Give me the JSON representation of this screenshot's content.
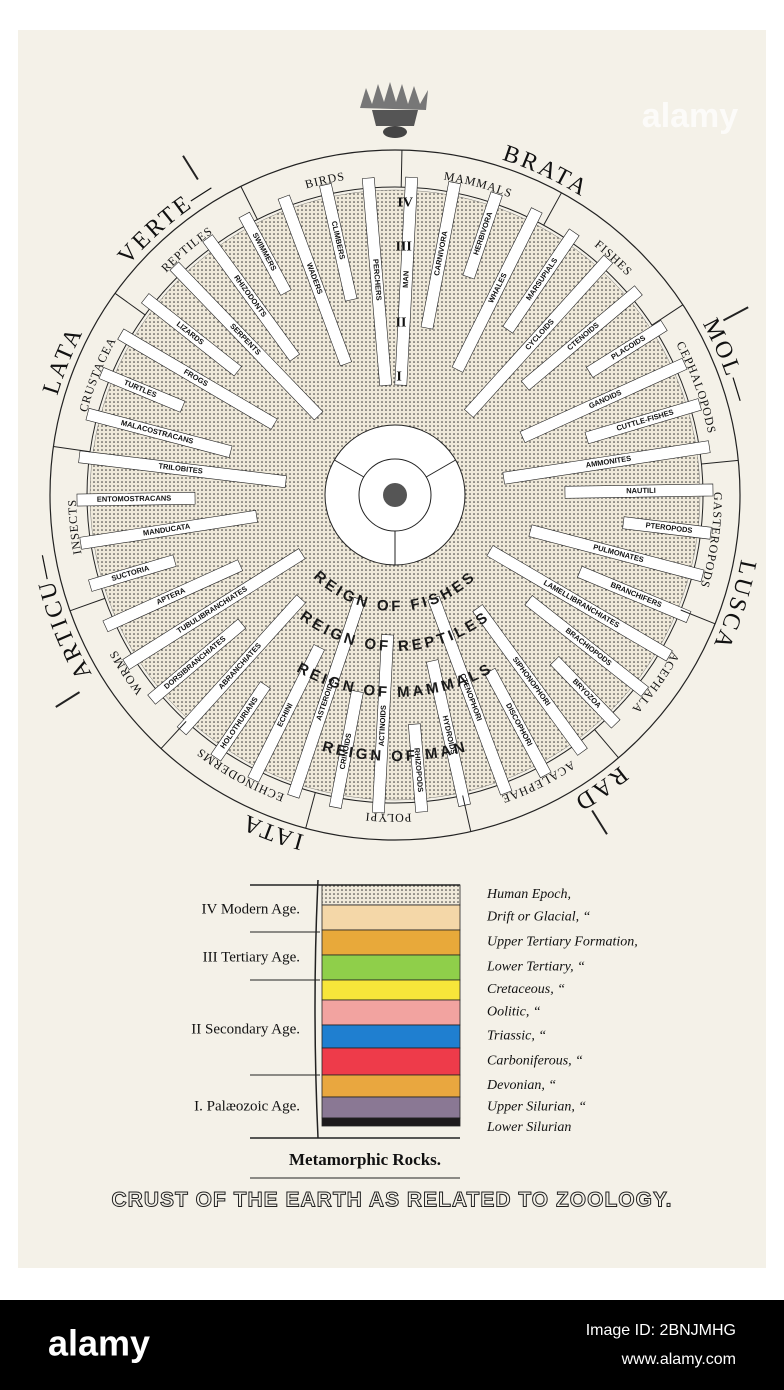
{
  "watermark": "alamy",
  "diagram": {
    "outer_words": [
      "VERTE—",
      "BRATA",
      "MOL—",
      "LUSCA",
      "RAD",
      "IATA",
      "ARTICU—",
      "LATA"
    ],
    "groups": [
      "MAMMALS",
      "FISHES",
      "CEPHALOPODS",
      "GASTEROPODS",
      "ACEPHALA",
      "ACALEPHAE",
      "POLYPI",
      "ECHINODERMS",
      "WORMS",
      "INSECTS",
      "CRUSTACEA",
      "REPTILES",
      "BIRDS"
    ],
    "spokes": [
      "MAN",
      "CARNIVORA",
      "HERBIVORA",
      "WHALES",
      "MARSUPIALS",
      "CYCLOIDS",
      "CTENOIDS",
      "PLACOIDS",
      "GANOIDS",
      "CUTTLE-FISHES",
      "AMMONITES",
      "NAUTILI",
      "PTEROPODS",
      "PULMONATES",
      "BRANCHIFERS",
      "LAMELLIBRANCHIATES",
      "BRACHIOPODS",
      "BRYOZOA",
      "SIPHONOPHORI",
      "DISCOPHORI",
      "CTENOPHORI",
      "HYDROIDS",
      "RHIZOPODS",
      "ACTINOIDS",
      "CRINOIDS",
      "ASTEROIDS",
      "ECHINI",
      "HOLOTHURIANS",
      "ABRANCHIATES",
      "DORSIBRANCHIATES",
      "TUBULIBRANCHIATES",
      "APTERA",
      "SUCTORIA",
      "MANDUCATA",
      "ENTOMOSTRACANS",
      "TRILOBITES",
      "MALACOSTRACANS",
      "TURTLES",
      "FROGS",
      "LIZARDS",
      "SERPENTS",
      "RHIZODONTS",
      "SWIMMERS",
      "WADERS",
      "CLIMBERS",
      "PERCHERS"
    ],
    "reigns": [
      "REIGN OF FISHES",
      "REIGN OF REPTILES",
      "REIGN OF MAMMALS",
      "REIGN OF MAN"
    ],
    "age_numerals": [
      "I",
      "II",
      "III",
      "IV"
    ]
  },
  "legend": {
    "ages": [
      "IV Modern Age.",
      "III Tertiary Age.",
      "II Secondary Age.",
      "I. Palæozoic Age."
    ],
    "strata": [
      {
        "name": "Human Epoch,",
        "color": "#e9e2d2"
      },
      {
        "name": "Drift or Glacial, “",
        "color": "#f4d7a8"
      },
      {
        "name": "Upper Tertiary Formation,",
        "color": "#e8a93a"
      },
      {
        "name": "Lower Tertiary, “",
        "color": "#8fcf4a"
      },
      {
        "name": "Cretaceous, “",
        "color": "#f7e63a"
      },
      {
        "name": "Oolitic, “",
        "color": "#f2a3a0"
      },
      {
        "name": "Triassic, “",
        "color": "#1f7fd0"
      },
      {
        "name": "Carboniferous, “",
        "color": "#ee3b4a"
      },
      {
        "name": "Devonian, “",
        "color": "#e9a73f"
      },
      {
        "name": "Upper Silurian, “",
        "color": "#8a7894"
      },
      {
        "name": "Lower Silurian",
        "color": "#1d1a1c"
      }
    ],
    "base": "Metamorphic Rocks."
  },
  "title": "CRUST OF THE EARTH AS RELATED TO ZOOLOGY.",
  "footer": {
    "logo": "alamy",
    "image_id": "Image ID: 2BNJMHG",
    "url": "www.alamy.com"
  }
}
